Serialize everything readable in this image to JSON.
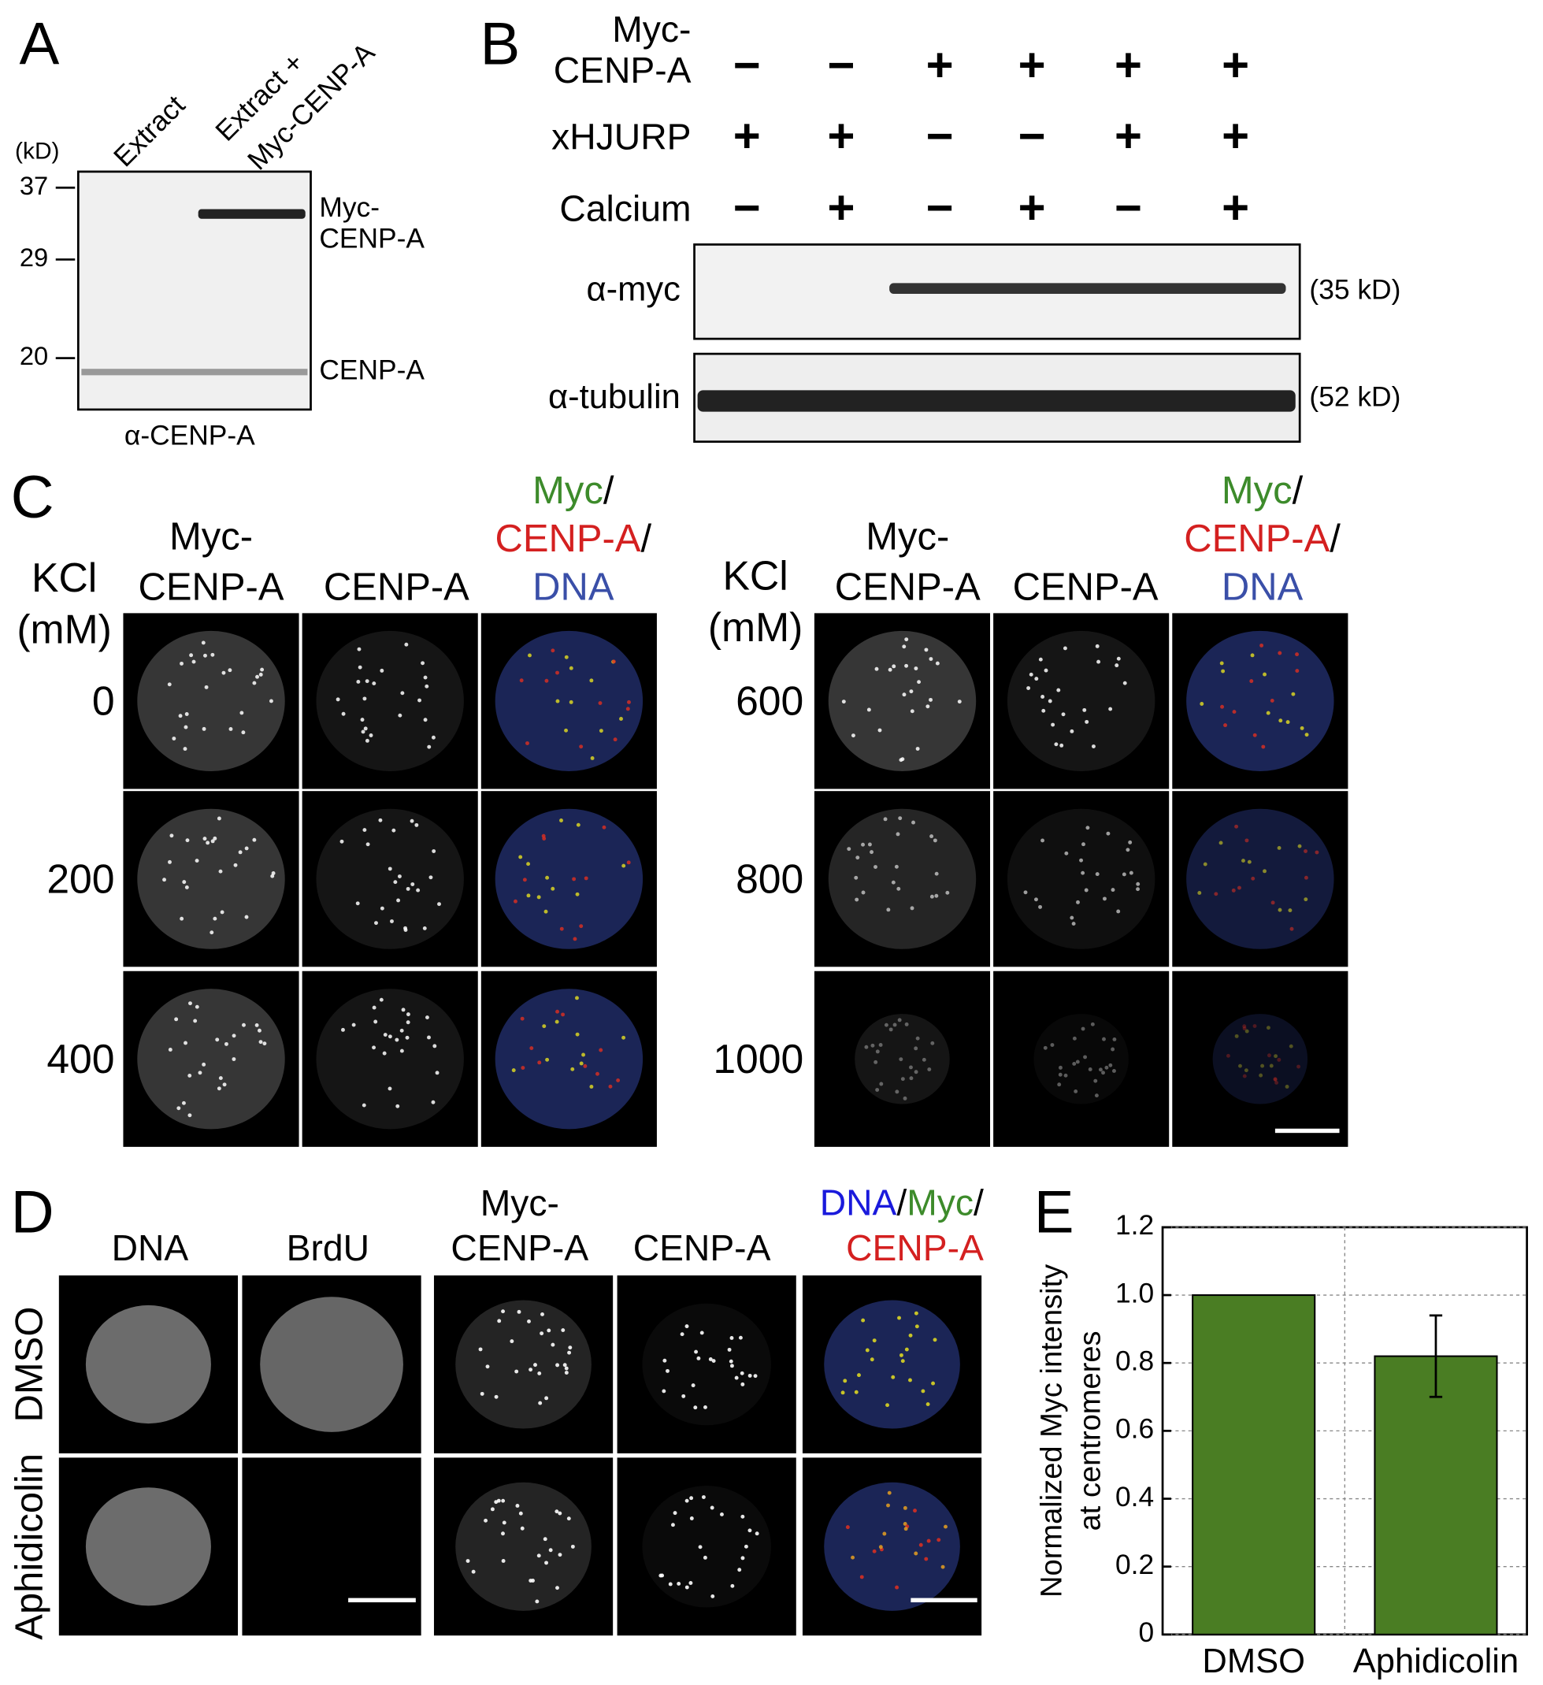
{
  "panel_a": {
    "label": "A",
    "unit": "(kD)",
    "lanes": [
      [
        "Extract"
      ],
      [
        "Extract +",
        "Myc-CENP-A"
      ]
    ],
    "markers": [
      37,
      29,
      20
    ],
    "bands": [
      [
        "Myc-",
        "CENP-A"
      ],
      [
        "CENP-A"
      ]
    ],
    "antibody": "α-CENP-A"
  },
  "panel_b": {
    "label": "B",
    "conditions": [
      {
        "name": [
          "Myc-",
          "CENP-A"
        ],
        "signs": [
          "−",
          "−",
          "+",
          "+",
          "+",
          "+"
        ]
      },
      {
        "name": [
          "xHJURP"
        ],
        "signs": [
          "+",
          "+",
          "−",
          "−",
          "+",
          "+"
        ]
      },
      {
        "name": [
          "Calcium"
        ],
        "signs": [
          "−",
          "+",
          "−",
          "+",
          "−",
          "+"
        ]
      }
    ],
    "blots": [
      {
        "antibody": "α-myc",
        "size": "(35 kD)"
      },
      {
        "antibody": "α-tubulin",
        "size": "(52 kD)"
      }
    ]
  },
  "panel_c": {
    "label": "C",
    "groups": [
      {
        "row_header": [
          "KCl",
          "(mM)"
        ],
        "columns": [
          [
            "Myc-",
            "CENP-A"
          ],
          [
            "CENP-A"
          ]
        ],
        "merge": [
          [
            {
              "text": "Myc",
              "color": "#3d8b2b"
            },
            {
              "text": "/",
              "color": "#000000"
            }
          ],
          [
            {
              "text": "CENP-A",
              "color": "#d42020"
            },
            {
              "text": "/",
              "color": "#000000"
            }
          ],
          [
            {
              "text": "DNA",
              "color": "#3a4fa8"
            }
          ]
        ],
        "rows": [
          0,
          200,
          400
        ]
      },
      {
        "row_header": [
          "KCl",
          "(mM)"
        ],
        "columns": [
          [
            "Myc-",
            "CENP-A"
          ],
          [
            "CENP-A"
          ]
        ],
        "merge": [
          [
            {
              "text": "Myc",
              "color": "#3d8b2b"
            },
            {
              "text": "/",
              "color": "#000000"
            }
          ],
          [
            {
              "text": "CENP-A",
              "color": "#d42020"
            },
            {
              "text": "/",
              "color": "#000000"
            }
          ],
          [
            {
              "text": "DNA",
              "color": "#3a4fa8"
            }
          ]
        ],
        "rows": [
          600,
          800,
          1000
        ]
      }
    ]
  },
  "panel_d": {
    "label": "D",
    "columns": [
      [
        "DNA"
      ],
      [
        "BrdU"
      ],
      [
        "Myc-",
        "CENP-A"
      ],
      [
        "CENP-A"
      ]
    ],
    "merge": [
      [
        {
          "text": "DNA",
          "color": "#1a1adc"
        },
        {
          "text": "/",
          "color": "#000000"
        },
        {
          "text": "Myc",
          "color": "#3d8b2b"
        },
        {
          "text": "/",
          "color": "#000000"
        }
      ],
      [
        {
          "text": "CENP-A",
          "color": "#d42020"
        }
      ]
    ],
    "rows": [
      "DMSO",
      "Aphidicolin"
    ]
  },
  "chart_data": {
    "type": "bar",
    "label": "E",
    "ylabel": [
      "Normalized Myc intensity",
      "at centromeres"
    ],
    "categories": [
      "DMSO",
      "Aphidicolin"
    ],
    "values": [
      1.0,
      0.82
    ],
    "errors": [
      null,
      0.12
    ],
    "color": "#4a7d23",
    "ylim": [
      0,
      1.2
    ],
    "yticks": [
      0,
      0.2,
      0.4,
      0.6,
      0.8,
      {
        "value": 1,
        "label": "1.0"
      },
      1.2
    ],
    "grid": true
  }
}
